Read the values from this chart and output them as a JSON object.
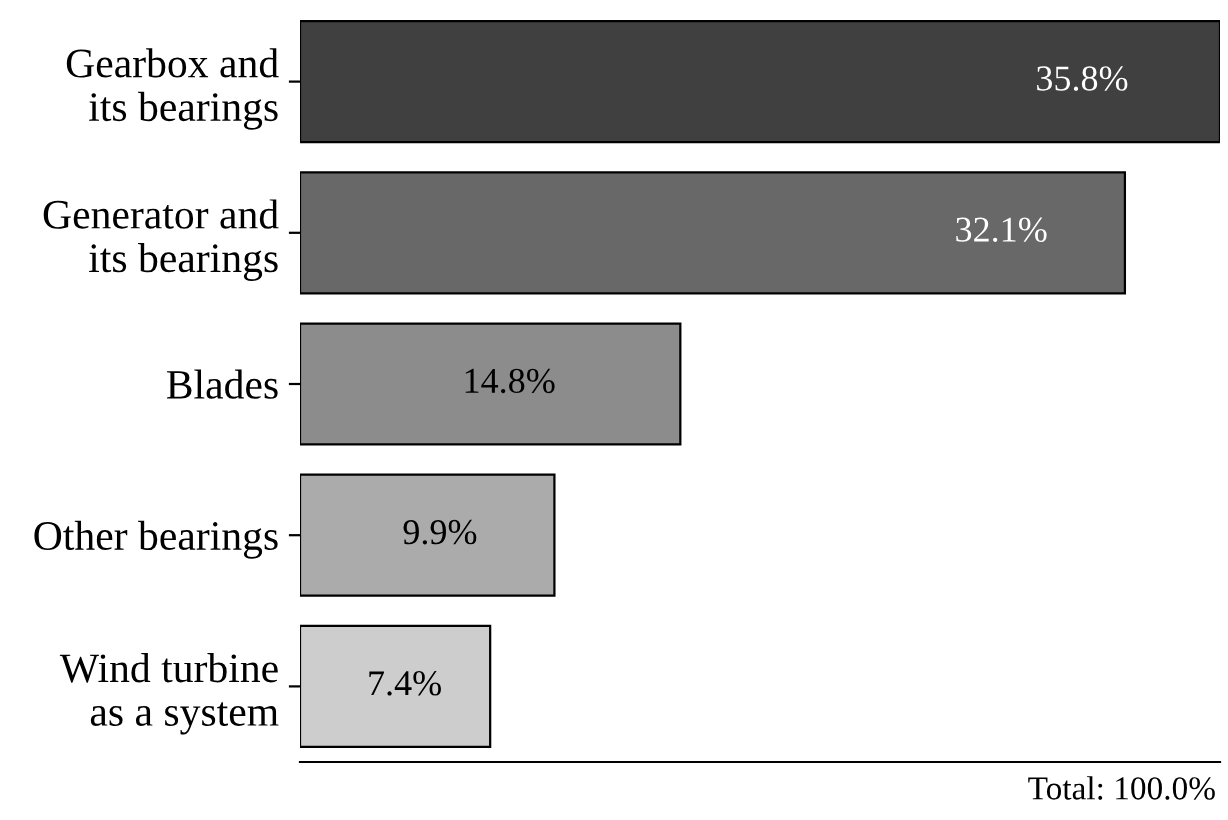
{
  "chart_data": {
    "type": "bar",
    "orientation": "horizontal",
    "categories": [
      "Gearbox and\nits bearings",
      "Generator and\nits bearings",
      "Blades",
      "Other bearings",
      "Wind turbine\nas a system"
    ],
    "values": [
      35.8,
      32.1,
      14.8,
      9.9,
      7.4
    ],
    "value_labels": [
      "35.8%",
      "32.1%",
      "14.8%",
      "9.9%",
      "7.4%"
    ],
    "colors": [
      "#404040",
      "#686868",
      "#8c8c8c",
      "#ababab",
      "#cdcdcd"
    ],
    "annotations": [
      "Total: 100.0%"
    ],
    "grid": false,
    "legend": false
  }
}
